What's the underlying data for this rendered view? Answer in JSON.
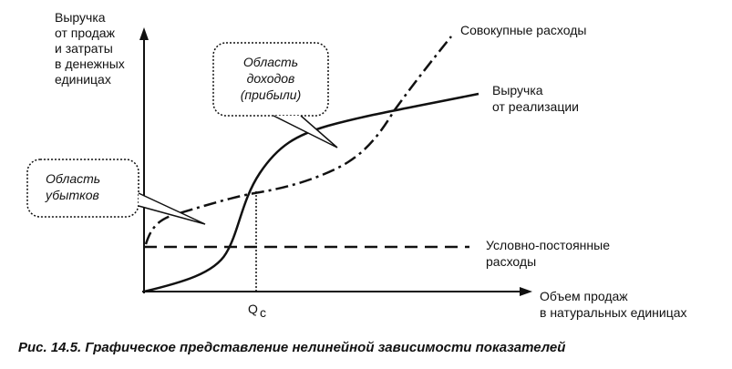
{
  "y_axis_label": [
    "Выручка",
    "от продаж",
    "и затраты",
    "в денежных",
    "единицах"
  ],
  "x_axis_label": [
    "Объем продаж",
    "в натуральных единицах"
  ],
  "total_costs_label": "Совокупные расходы",
  "revenue_label": [
    "Выручка",
    "от реализации"
  ],
  "fixed_costs_label": [
    "Условно-постоянные",
    "расходы"
  ],
  "profit_area_label": [
    "Область",
    "доходов",
    "(прибыли)"
  ],
  "loss_area_label": [
    "Область",
    "убытков"
  ],
  "break_even_label": {
    "main": "Q",
    "sub": "c"
  },
  "caption": "Рис. 14.5. Графическое представление нелинейной зависимости показателей"
}
